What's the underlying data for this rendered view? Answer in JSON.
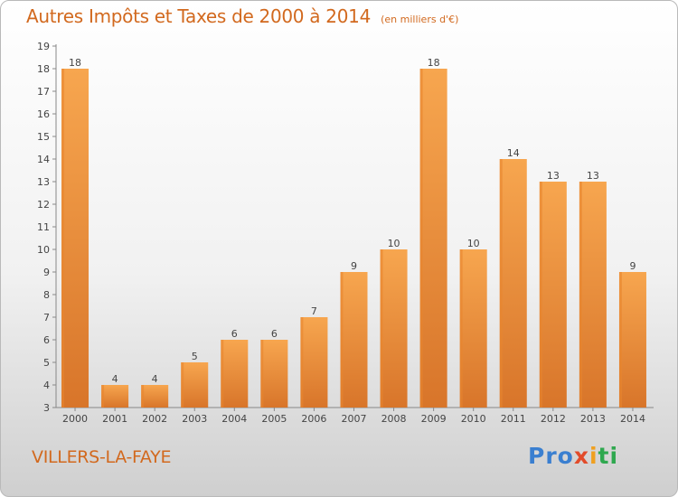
{
  "title": "Autres Impôts et Taxes de 2000 à 2014",
  "subtitle": "(en milliers d'€)",
  "location": "VILLERS-LA-FAYE",
  "logo": {
    "p1": "Pro",
    "p2": "x",
    "p3": "i",
    "p4": "ti"
  },
  "colors": {
    "bar": "#f5a04b",
    "bar_dark": "#d9762a",
    "text": "#d2691e",
    "axis": "#888888"
  },
  "chart_data": {
    "type": "bar",
    "categories": [
      "2000",
      "2001",
      "2002",
      "2003",
      "2004",
      "2005",
      "2006",
      "2007",
      "2008",
      "2009",
      "2010",
      "2011",
      "2012",
      "2013",
      "2014"
    ],
    "values": [
      18,
      4,
      4,
      5,
      6,
      6,
      7,
      9,
      10,
      18,
      10,
      14,
      13,
      13,
      9
    ],
    "ylim": [
      3,
      19
    ],
    "yticks": [
      3,
      4,
      5,
      6,
      7,
      8,
      9,
      10,
      11,
      12,
      13,
      14,
      15,
      16,
      17,
      18,
      19
    ],
    "title": "Autres Impôts et Taxes de 2000 à 2014",
    "xlabel": "",
    "ylabel": "",
    "grid": false
  }
}
